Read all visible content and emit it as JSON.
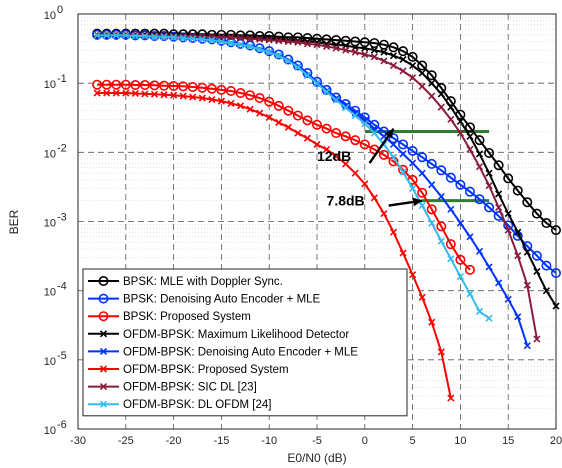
{
  "chart_data": {
    "type": "line",
    "xlabel": "E0/N0 (dB)",
    "ylabel": "BER",
    "xlim": [
      -30,
      20
    ],
    "ylim_log10": [
      -6,
      0
    ],
    "y_scale": "log",
    "x_ticks": [
      -30,
      -25,
      -20,
      -15,
      -10,
      -5,
      0,
      5,
      10,
      15,
      20
    ],
    "x_tick_labels": [
      "-30",
      "-25",
      "-20",
      "-15",
      "-10",
      "-5",
      "0",
      "5",
      "10",
      "15",
      "20"
    ],
    "y_tick_exponents": [
      -6,
      -5,
      -4,
      -3,
      -2,
      -1,
      0
    ],
    "y_tick_labels": [
      "10",
      "10",
      "10",
      "10",
      "10",
      "10",
      "10"
    ],
    "y_tick_superscripts": [
      "-6",
      "-5",
      "-4",
      "-3",
      "-2",
      "-1",
      "0"
    ],
    "grid": true,
    "legend_position": "bottom-left",
    "series": [
      {
        "name": "BPSK: MLE with Doppler Sync.",
        "color": "#000000",
        "marker": "circle",
        "x": [
          -28,
          -27,
          -26,
          -25,
          -24,
          -23,
          -22,
          -21,
          -20,
          -19,
          -18,
          -17,
          -16,
          -15,
          -14,
          -13,
          -12,
          -11,
          -10,
          -9,
          -8,
          -7,
          -6,
          -5,
          -4,
          -3,
          -2,
          -1,
          0,
          1,
          2,
          3,
          4,
          5,
          6,
          7,
          8,
          9,
          10,
          11,
          12,
          13,
          14,
          15,
          16,
          17,
          18,
          19,
          20
        ],
        "y": [
          0.52,
          0.52,
          0.52,
          0.52,
          0.52,
          0.52,
          0.52,
          0.52,
          0.51,
          0.51,
          0.51,
          0.51,
          0.5,
          0.5,
          0.5,
          0.49,
          0.49,
          0.48,
          0.48,
          0.47,
          0.46,
          0.46,
          0.45,
          0.44,
          0.43,
          0.42,
          0.41,
          0.4,
          0.39,
          0.38,
          0.36,
          0.33,
          0.29,
          0.24,
          0.18,
          0.13,
          0.085,
          0.055,
          0.035,
          0.023,
          0.015,
          0.0098,
          0.0065,
          0.0042,
          0.0028,
          0.0019,
          0.0013,
          0.00095,
          0.00075
        ]
      },
      {
        "name": "BPSK: Denoising Auto Encoder + MLE",
        "color": "#0033ff",
        "marker": "circle",
        "x": [
          -28,
          -27,
          -26,
          -25,
          -24,
          -23,
          -22,
          -21,
          -20,
          -19,
          -18,
          -17,
          -16,
          -15,
          -14,
          -13,
          -12,
          -11,
          -10,
          -9,
          -8,
          -7,
          -6,
          -5,
          -4,
          -3,
          -2,
          -1,
          0,
          1,
          2,
          3,
          4,
          5,
          6,
          7,
          8,
          9,
          10,
          11,
          12,
          13,
          14,
          15,
          16,
          17,
          18,
          19,
          20
        ],
        "y": [
          0.5,
          0.5,
          0.5,
          0.5,
          0.49,
          0.49,
          0.48,
          0.48,
          0.47,
          0.46,
          0.45,
          0.44,
          0.43,
          0.41,
          0.39,
          0.37,
          0.35,
          0.32,
          0.29,
          0.26,
          0.22,
          0.18,
          0.14,
          0.105,
          0.08,
          0.062,
          0.05,
          0.04,
          0.032,
          0.025,
          0.02,
          0.016,
          0.013,
          0.0105,
          0.0085,
          0.0068,
          0.0055,
          0.0043,
          0.0034,
          0.0027,
          0.0021,
          0.0016,
          0.0012,
          0.00088,
          0.00062,
          0.00044,
          0.00032,
          0.00023,
          0.00018
        ]
      },
      {
        "name": "BPSK: Proposed System",
        "color": "#ff0000",
        "marker": "circle",
        "x": [
          -28,
          -27,
          -26,
          -25,
          -24,
          -23,
          -22,
          -21,
          -20,
          -19,
          -18,
          -17,
          -16,
          -15,
          -14,
          -13,
          -12,
          -11,
          -10,
          -9,
          -8,
          -7,
          -6,
          -5,
          -4,
          -3,
          -2,
          -1,
          0,
          1,
          2,
          3,
          4,
          5,
          6,
          7,
          8,
          9,
          10,
          11
        ],
        "y": [
          0.095,
          0.095,
          0.095,
          0.095,
          0.094,
          0.094,
          0.093,
          0.092,
          0.091,
          0.09,
          0.088,
          0.086,
          0.083,
          0.08,
          0.077,
          0.072,
          0.067,
          0.061,
          0.054,
          0.047,
          0.04,
          0.034,
          0.029,
          0.025,
          0.022,
          0.019,
          0.017,
          0.015,
          0.013,
          0.011,
          0.0092,
          0.0074,
          0.0056,
          0.004,
          0.0026,
          0.0015,
          0.00085,
          0.00047,
          0.00028,
          0.0002
        ]
      },
      {
        "name": "OFDM-BPSK: Maximum Likelihood Detector",
        "color": "#000000",
        "marker": "x",
        "x": [
          -28,
          -27,
          -26,
          -25,
          -24,
          -23,
          -22,
          -21,
          -20,
          -19,
          -18,
          -17,
          -16,
          -15,
          -14,
          -13,
          -12,
          -11,
          -10,
          -9,
          -8,
          -7,
          -6,
          -5,
          -4,
          -3,
          -2,
          -1,
          0,
          1,
          2,
          3,
          4,
          5,
          6,
          7,
          8,
          9,
          10,
          11,
          12,
          13,
          14,
          15,
          16,
          17,
          18,
          19,
          20
        ],
        "y": [
          0.5,
          0.5,
          0.5,
          0.5,
          0.5,
          0.5,
          0.5,
          0.5,
          0.49,
          0.49,
          0.49,
          0.48,
          0.48,
          0.47,
          0.47,
          0.46,
          0.46,
          0.45,
          0.44,
          0.43,
          0.42,
          0.41,
          0.4,
          0.39,
          0.37,
          0.36,
          0.35,
          0.33,
          0.32,
          0.3,
          0.28,
          0.25,
          0.22,
          0.18,
          0.14,
          0.1,
          0.07,
          0.045,
          0.028,
          0.017,
          0.0095,
          0.005,
          0.0025,
          0.0013,
          0.0007,
          0.00036,
          0.00019,
          0.0001,
          6e-05
        ]
      },
      {
        "name": "OFDM-BPSK: Denoising Auto Encoder + MLE",
        "color": "#0033ff",
        "marker": "x",
        "x": [
          -28,
          -27,
          -26,
          -25,
          -24,
          -23,
          -22,
          -21,
          -20,
          -19,
          -18,
          -17,
          -16,
          -15,
          -14,
          -13,
          -12,
          -11,
          -10,
          -9,
          -8,
          -7,
          -6,
          -5,
          -4,
          -3,
          -2,
          -1,
          0,
          1,
          2,
          3,
          4,
          5,
          6,
          7,
          8,
          9,
          10,
          11,
          12,
          13,
          14,
          15,
          16,
          17
        ],
        "y": [
          0.49,
          0.49,
          0.49,
          0.49,
          0.48,
          0.48,
          0.47,
          0.47,
          0.46,
          0.45,
          0.44,
          0.43,
          0.42,
          0.4,
          0.38,
          0.36,
          0.34,
          0.31,
          0.28,
          0.25,
          0.21,
          0.17,
          0.13,
          0.1,
          0.077,
          0.06,
          0.047,
          0.037,
          0.029,
          0.022,
          0.017,
          0.013,
          0.0095,
          0.007,
          0.005,
          0.0034,
          0.0023,
          0.0015,
          0.00095,
          0.0006,
          0.00037,
          0.00022,
          0.00013,
          7.5e-05,
          4.2e-05,
          1.6e-05
        ]
      },
      {
        "name": "OFDM-BPSK: Proposed System",
        "color": "#ff0000",
        "marker": "x",
        "x": [
          -28,
          -27,
          -26,
          -25,
          -24,
          -23,
          -22,
          -21,
          -20,
          -19,
          -18,
          -17,
          -16,
          -15,
          -14,
          -13,
          -12,
          -11,
          -10,
          -9,
          -8,
          -7,
          -6,
          -5,
          -4,
          -3,
          -2,
          -1,
          0,
          1,
          2,
          3,
          4,
          5,
          6,
          7,
          8,
          9
        ],
        "y": [
          0.072,
          0.072,
          0.072,
          0.072,
          0.071,
          0.07,
          0.069,
          0.068,
          0.067,
          0.065,
          0.063,
          0.061,
          0.058,
          0.055,
          0.051,
          0.047,
          0.042,
          0.037,
          0.032,
          0.027,
          0.023,
          0.019,
          0.016,
          0.013,
          0.011,
          0.0088,
          0.0068,
          0.005,
          0.0035,
          0.0022,
          0.0013,
          0.0007,
          0.00035,
          0.00017,
          8e-05,
          3.5e-05,
          1.3e-05,
          2.8e-06
        ]
      },
      {
        "name": "OFDM-BPSK: SIC DL [23]",
        "color": "#8b1a3a",
        "marker": "x",
        "x": [
          -28,
          -27,
          -26,
          -25,
          -24,
          -23,
          -22,
          -21,
          -20,
          -19,
          -18,
          -17,
          -16,
          -15,
          -14,
          -13,
          -12,
          -11,
          -10,
          -9,
          -8,
          -7,
          -6,
          -5,
          -4,
          -3,
          -2,
          -1,
          0,
          1,
          2,
          3,
          4,
          5,
          6,
          7,
          8,
          9,
          10,
          11,
          12,
          13,
          14,
          15,
          16,
          17,
          18
        ],
        "y": [
          0.5,
          0.5,
          0.5,
          0.5,
          0.5,
          0.49,
          0.49,
          0.49,
          0.48,
          0.48,
          0.48,
          0.47,
          0.47,
          0.46,
          0.46,
          0.45,
          0.44,
          0.43,
          0.42,
          0.41,
          0.4,
          0.39,
          0.37,
          0.36,
          0.34,
          0.32,
          0.3,
          0.28,
          0.26,
          0.24,
          0.21,
          0.18,
          0.15,
          0.12,
          0.09,
          0.065,
          0.045,
          0.03,
          0.019,
          0.011,
          0.0062,
          0.0033,
          0.0016,
          0.00075,
          0.00032,
          0.00012,
          2e-05
        ]
      },
      {
        "name": "OFDM-BPSK: DL OFDM [24]",
        "color": "#33bbee",
        "marker": "x",
        "x": [
          -28,
          -27,
          -26,
          -25,
          -24,
          -23,
          -22,
          -21,
          -20,
          -19,
          -18,
          -17,
          -16,
          -15,
          -14,
          -13,
          -12,
          -11,
          -10,
          -9,
          -8,
          -7,
          -6,
          -5,
          -4,
          -3,
          -2,
          -1,
          0,
          1,
          2,
          3,
          4,
          5,
          6,
          7,
          8,
          9,
          10,
          11,
          12,
          13
        ],
        "y": [
          0.49,
          0.49,
          0.49,
          0.49,
          0.48,
          0.48,
          0.47,
          0.47,
          0.46,
          0.45,
          0.44,
          0.43,
          0.42,
          0.4,
          0.38,
          0.36,
          0.34,
          0.31,
          0.28,
          0.25,
          0.21,
          0.17,
          0.13,
          0.1,
          0.075,
          0.057,
          0.044,
          0.034,
          0.026,
          0.019,
          0.013,
          0.0085,
          0.0052,
          0.003,
          0.0017,
          0.00095,
          0.00052,
          0.00029,
          0.00016,
          9e-05,
          5e-05,
          4e-05
        ]
      }
    ],
    "annotations": [
      {
        "text": "12dB",
        "x": -5,
        "y": 0.0075
      },
      {
        "text": "7.8dB",
        "x": -4,
        "y": 0.0017
      }
    ],
    "reference_lines": [
      {
        "color": "#2e7d32",
        "x1": 0,
        "x2": 13,
        "y": 0.02
      },
      {
        "color": "#2e7d32",
        "x1": 6,
        "x2": 13,
        "y": 0.002
      }
    ],
    "arrows": [
      {
        "from_x": 0.5,
        "from_y": 0.007,
        "to_x": 3,
        "to_y": 0.022
      },
      {
        "from_x": 2.5,
        "from_y": 0.0017,
        "to_x": 6,
        "to_y": 0.002
      }
    ]
  }
}
